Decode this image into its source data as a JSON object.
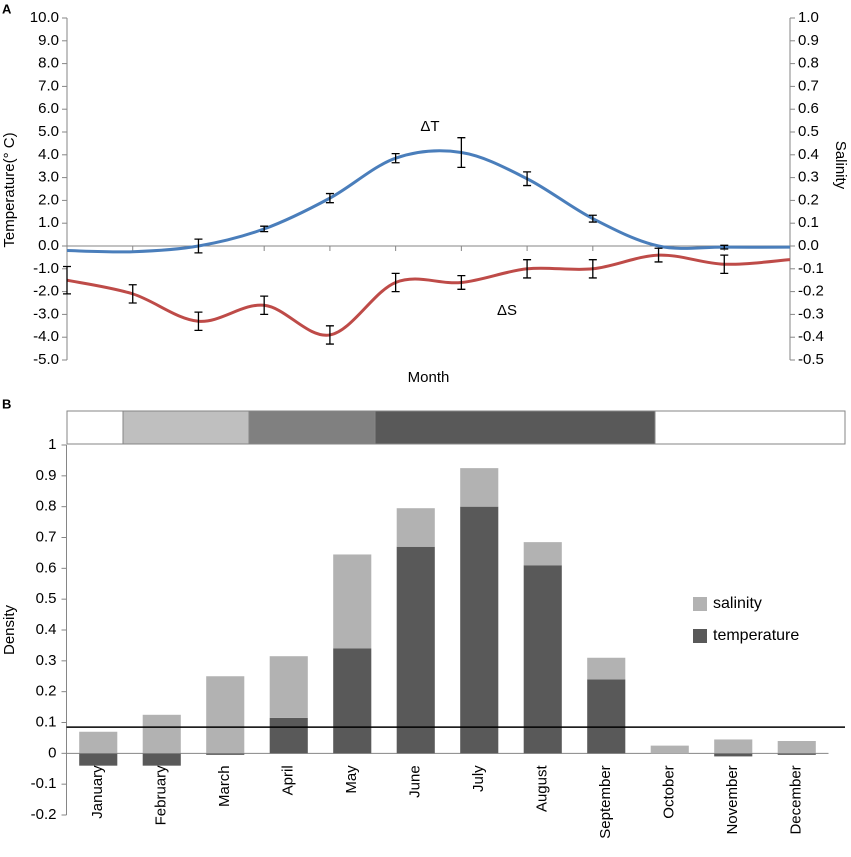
{
  "chart_data": [
    {
      "type": "line",
      "panel_label": "A",
      "ylabel": "Temperature(° C)",
      "y2label": "Salinity",
      "xlabel": "Month",
      "ylim": [
        -5,
        10
      ],
      "yticks": [
        {
          "value": 10,
          "label": "10.0"
        },
        {
          "value": 9,
          "label": "9.0"
        },
        {
          "value": 8,
          "label": "8.0"
        },
        {
          "value": 7,
          "label": "7.0"
        },
        {
          "value": 6,
          "label": "6.0"
        },
        {
          "value": 5,
          "label": "5.0"
        },
        {
          "value": 4,
          "label": "4.0"
        },
        {
          "value": 3,
          "label": "3.0"
        },
        {
          "value": 2,
          "label": "2.0"
        },
        {
          "value": 1,
          "label": "1.0"
        },
        {
          "value": 0,
          "label": "0.0"
        },
        {
          "value": -1,
          "label": "-1.0"
        },
        {
          "value": -2,
          "label": "-2.0"
        },
        {
          "value": -3,
          "label": "-3.0"
        },
        {
          "value": -4,
          "label": "-4.0"
        },
        {
          "value": -5,
          "label": "-5.0"
        }
      ],
      "y2lim": [
        -0.5,
        1
      ],
      "y2ticks": [
        {
          "value": 1,
          "label": "1.0"
        },
        0.9,
        0.8,
        0.7,
        0.6,
        0.5,
        0.4,
        0.3,
        0.2,
        0.1,
        {
          "value": 0,
          "label": "0.0"
        },
        -0.1,
        -0.2,
        -0.3,
        -0.4,
        -0.5
      ],
      "series": [
        {
          "name": "ΔT",
          "color": "#4a7ebb",
          "values": [
            -0.2,
            -0.25,
            0.0,
            0.75,
            2.1,
            3.85,
            4.1,
            2.95,
            1.2,
            0.0,
            -0.05,
            -0.05
          ],
          "errors": [
            null,
            null,
            0.3,
            0.12,
            0.2,
            0.2,
            0.65,
            0.3,
            0.15,
            null,
            0.08,
            null
          ]
        },
        {
          "name": "ΔS",
          "color": "#be4b48",
          "axis": "y2",
          "values": [
            -0.15,
            -0.21,
            -0.33,
            -0.26,
            -0.39,
            -0.16,
            -0.16,
            -0.1,
            -0.1,
            -0.04,
            -0.08,
            -0.06
          ],
          "errors": [
            0.06,
            0.04,
            0.04,
            0.04,
            0.04,
            0.04,
            0.03,
            0.04,
            0.04,
            0.03,
            0.04,
            null
          ]
        }
      ]
    },
    {
      "type": "bar",
      "stacked": true,
      "panel_label": "B",
      "ylabel": "Density",
      "legend": "right",
      "categories": [
        "January",
        "February",
        "March",
        "April",
        "May",
        "June",
        "July",
        "August",
        "September",
        "October",
        "November",
        "December"
      ],
      "ylim": [
        -0.2,
        1
      ],
      "yticks": [
        -0.2,
        -0.1,
        0,
        0.1,
        0.2,
        0.3,
        0.4,
        0.5,
        0.6,
        0.7,
        0.8,
        0.9,
        1
      ],
      "reference_line": 0.085,
      "series": [
        {
          "name": "temperature",
          "color": "#595959",
          "values": [
            -0.04,
            -0.04,
            -0.005,
            0.115,
            0.34,
            0.67,
            0.8,
            0.61,
            0.24,
            0,
            -0.01,
            -0.005
          ]
        },
        {
          "name": "salinity",
          "color": "#b2b2b2",
          "values": [
            0.07,
            0.125,
            0.25,
            0.2,
            0.305,
            0.125,
            0.125,
            0.075,
            0.07,
            0.025,
            0.045,
            0.04
          ]
        }
      ]
    }
  ]
}
